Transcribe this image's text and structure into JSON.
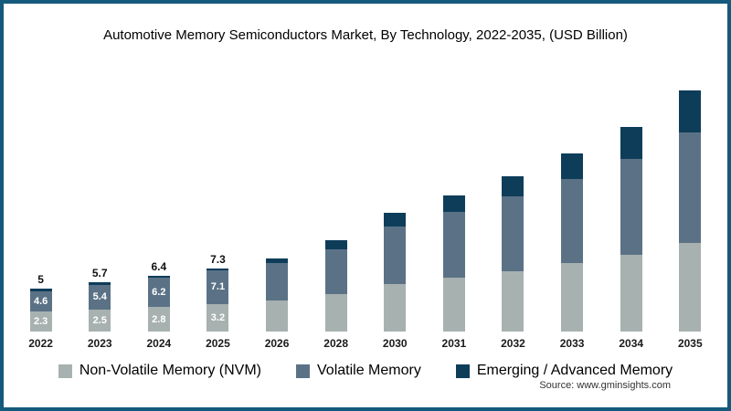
{
  "title": "Automotive Memory Semiconductors Market, By Technology, 2022-2035, (USD Billion)",
  "source": "Source: www.gminsights.com",
  "colors": {
    "frame": "#15597c",
    "nvm": "#a7b1b0",
    "volatile": "#5b7286",
    "emerging": "#0e3d5a"
  },
  "legend": [
    {
      "label": "Non-Volatile Memory (NVM)",
      "color": "#a7b1b0"
    },
    {
      "label": "Volatile Memory",
      "color": "#5b7286"
    },
    {
      "label": "Emerging / Advanced Memory",
      "color": "#0e3d5a"
    }
  ],
  "chart_data": {
    "type": "bar",
    "stacked": true,
    "title": "Automotive Memory Semiconductors Market, By Technology, 2022-2035, (USD Billion)",
    "unit": "USD Billion",
    "xlabel": "",
    "ylabel": "",
    "ylim": [
      0,
      30
    ],
    "grid": false,
    "legend_position": "bottom",
    "categories": [
      "2022",
      "2023",
      "2024",
      "2025",
      "2026",
      "2028",
      "2030",
      "2031",
      "2032",
      "2033",
      "2034",
      "2035"
    ],
    "series": [
      {
        "name": "Non-Volatile Memory (NVM)",
        "color": "#a7b1b0",
        "values": [
          2.3,
          2.5,
          2.8,
          3.2,
          3.6,
          4.3,
          5.5,
          6.2,
          7.0,
          7.9,
          8.9,
          10.2
        ]
      },
      {
        "name": "Volatile Memory",
        "color": "#5b7286",
        "values": [
          2.3,
          2.9,
          3.4,
          3.9,
          4.3,
          5.2,
          6.6,
          7.6,
          8.6,
          9.7,
          11.0,
          12.8
        ]
      },
      {
        "name": "Emerging / Advanced Memory",
        "color": "#0e3d5a",
        "values": [
          0.4,
          0.3,
          0.2,
          0.2,
          0.5,
          1.0,
          1.6,
          1.9,
          2.3,
          2.9,
          3.7,
          4.8
        ]
      }
    ],
    "bar_labels": [
      {
        "total": "5",
        "mid": "4.6",
        "bottom": "2.3"
      },
      {
        "total": "5.7",
        "mid": "5.4",
        "bottom": "2.5"
      },
      {
        "total": "6.4",
        "mid": "6.2",
        "bottom": "2.8"
      },
      {
        "total": "7.3",
        "mid": "7.1",
        "bottom": "3.2"
      },
      null,
      null,
      null,
      null,
      null,
      null,
      null,
      null
    ]
  }
}
